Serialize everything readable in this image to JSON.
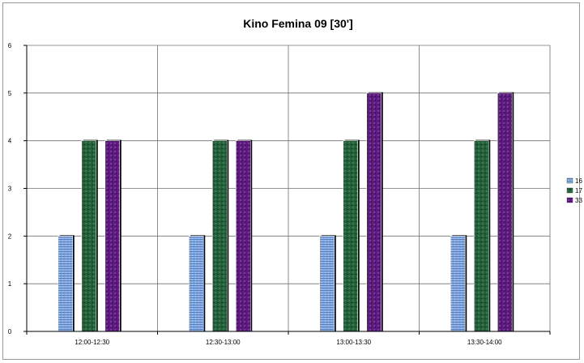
{
  "chart_data": {
    "type": "bar",
    "title": "Kino Femina 09   [30']",
    "xlabel": "",
    "ylabel": "",
    "categories": [
      "12:00-12:30",
      "12:30-13:00",
      "13:00-13:30",
      "13:30-14:00"
    ],
    "series": [
      {
        "name": "16",
        "color": "#7b9fd6",
        "values": [
          2,
          2,
          2,
          2
        ]
      },
      {
        "name": "17",
        "color": "#1f5a33",
        "values": [
          4,
          4,
          4,
          4
        ]
      },
      {
        "name": "33",
        "color": "#5a1a7a",
        "values": [
          4,
          4,
          5,
          5
        ]
      }
    ],
    "ylim": [
      0,
      6
    ],
    "yticks": [
      0,
      1,
      2,
      3,
      4,
      5,
      6
    ],
    "grid": true,
    "legend": "right"
  }
}
